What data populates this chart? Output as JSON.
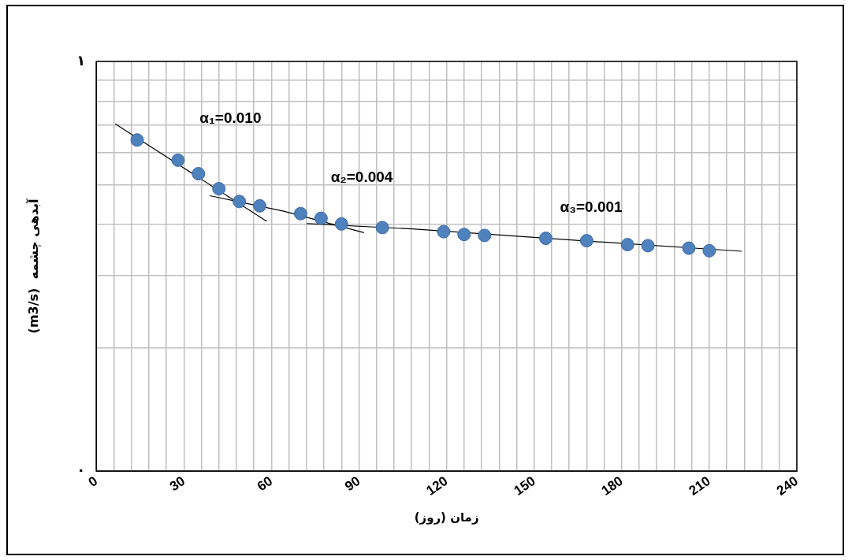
{
  "chart_data": {
    "type": "scatter",
    "xlabel": "زمان (روز)",
    "ylabel": "(m3/s)  آبدهی چشمه",
    "xlim": [
      0,
      240
    ],
    "xticks": [
      0,
      {
        "value": 6,
        "label": null
      },
      {
        "value": 12,
        "label": null
      },
      {
        "value": 18,
        "label": null
      },
      {
        "value": 24,
        "label": null
      },
      30,
      {
        "value": 36,
        "label": null
      },
      {
        "value": 42,
        "label": null
      },
      {
        "value": 48,
        "label": null
      },
      {
        "value": 54,
        "label": null
      },
      60,
      {
        "value": 66,
        "label": null
      },
      {
        "value": 72,
        "label": null
      },
      {
        "value": 78,
        "label": null
      },
      {
        "value": 84,
        "label": null
      },
      90,
      {
        "value": 96,
        "label": null
      },
      {
        "value": 102,
        "label": null
      },
      {
        "value": 108,
        "label": null
      },
      {
        "value": 114,
        "label": null
      },
      120,
      {
        "value": 126,
        "label": null
      },
      {
        "value": 132,
        "label": null
      },
      {
        "value": 138,
        "label": null
      },
      {
        "value": 144,
        "label": null
      },
      150,
      {
        "value": 156,
        "label": null
      },
      {
        "value": 162,
        "label": null
      },
      {
        "value": 168,
        "label": null
      },
      {
        "value": 174,
        "label": null
      },
      180,
      {
        "value": 186,
        "label": null
      },
      {
        "value": 192,
        "label": null
      },
      {
        "value": 198,
        "label": null
      },
      {
        "value": 204,
        "label": null
      },
      210,
      {
        "value": 216,
        "label": null
      },
      {
        "value": 222,
        "label": null
      },
      {
        "value": 228,
        "label": null
      },
      {
        "value": 234,
        "label": null
      },
      240
    ],
    "ylim": [
      0.1,
      1
    ],
    "yticks": [
      {
        "value": 0.1,
        "label": "٠"
      },
      {
        "value": 0.2,
        "label": null
      },
      {
        "value": 0.3,
        "label": null
      },
      {
        "value": 0.4,
        "label": null
      },
      {
        "value": 0.5,
        "label": null
      },
      {
        "value": 0.6,
        "label": null
      },
      {
        "value": 0.7,
        "label": null
      },
      {
        "value": 0.8,
        "label": null
      },
      {
        "value": 0.9,
        "label": null
      },
      {
        "value": 1,
        "label": "١"
      }
    ],
    "log": true,
    "grid": true,
    "legend": false,
    "marker": "circle",
    "series": [
      {
        "color": "#4f81bd",
        "x": [
          14,
          28,
          35,
          42,
          49,
          56,
          70,
          77,
          84,
          98,
          119,
          126,
          133,
          154,
          168,
          182,
          189,
          203,
          210
        ],
        "values": [
          0.643,
          0.574,
          0.532,
          0.489,
          0.455,
          0.444,
          0.425,
          0.414,
          0.401,
          0.393,
          0.384,
          0.378,
          0.376,
          0.37,
          0.365,
          0.357,
          0.355,
          0.35,
          0.345
        ]
      },
      {
        "type": "line",
        "color": "#000000",
        "marker": "none",
        "x": [
          6.5,
          58.4
        ],
        "values": [
          0.704,
          0.407
        ]
      },
      {
        "type": "line",
        "color": "#000000",
        "marker": "none",
        "x": [
          38.9,
          64.2,
          91.7
        ],
        "values": [
          0.47,
          0.431,
          0.382
        ]
      },
      {
        "type": "line",
        "color": "#000000",
        "marker": "none",
        "x": [
          72.1,
          108.3,
          166.4,
          221.1
        ],
        "values": [
          0.402,
          0.39,
          0.365,
          0.344
        ]
      }
    ],
    "annotations": [
      "α₁=0.010",
      "α₂=0.004",
      "α₃=0.001"
    ]
  }
}
